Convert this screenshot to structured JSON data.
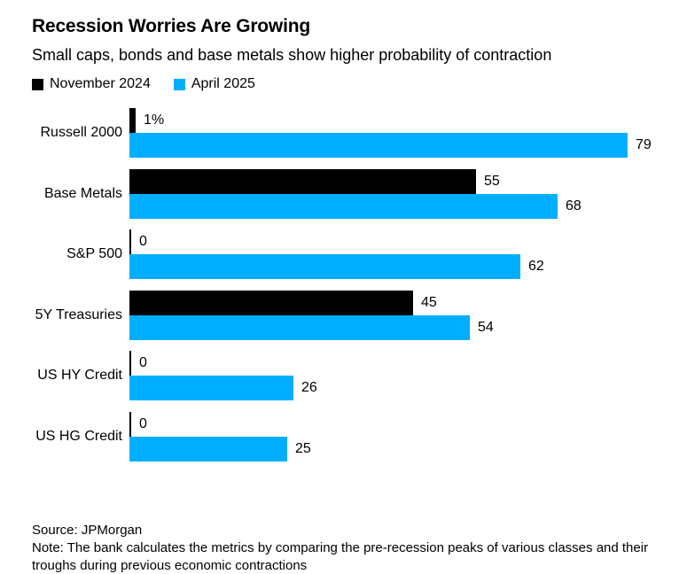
{
  "header": {
    "title": "Recession Worries Are Growing",
    "subtitle": "Small caps, bonds and base metals show higher probability of contraction"
  },
  "legend": [
    {
      "label": "November 2024",
      "color": "#000000"
    },
    {
      "label": "April 2025",
      "color": "#00aeff"
    }
  ],
  "chart_data": {
    "type": "bar",
    "orientation": "horizontal",
    "title": "Recession Worries Are Growing",
    "subtitle": "Small caps, bonds and base metals show higher probability of contraction",
    "categories": [
      "Russell 2000",
      "Base Metals",
      "S&P 500",
      "5Y Treasuries",
      "US HY Credit",
      "US HG Credit"
    ],
    "series": [
      {
        "name": "November 2024",
        "color": "#000000",
        "values": [
          1,
          55,
          0,
          45,
          0,
          0
        ],
        "labels": [
          "1%",
          "55",
          "0",
          "45",
          "0",
          "0"
        ]
      },
      {
        "name": "April 2025",
        "color": "#00aeff",
        "values": [
          79,
          68,
          62,
          54,
          26,
          25
        ],
        "labels": [
          "79",
          "68",
          "62",
          "54",
          "26",
          "25"
        ]
      }
    ],
    "xlabel": "",
    "ylabel": "",
    "xlim": [
      0,
      79
    ],
    "grid": false,
    "legend_position": "top-left",
    "value_labels": true
  },
  "footer": {
    "source": "Source: JPMorgan",
    "note": "Note: The bank calculates the metrics by comparing the pre-recession peaks of various classes and their troughs during previous economic contractions"
  }
}
